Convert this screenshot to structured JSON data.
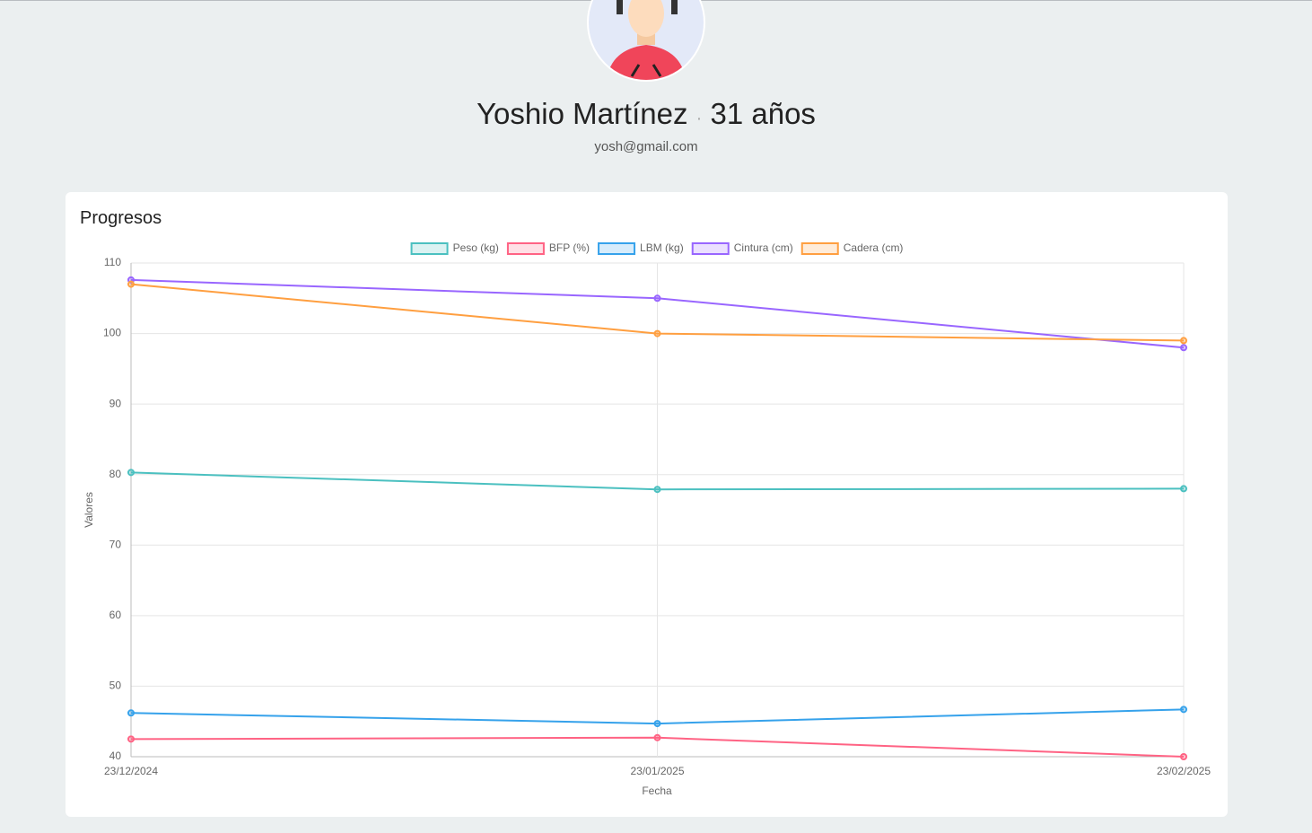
{
  "profile": {
    "name": "Yoshio Martínez",
    "separator": "·",
    "age": "31 años",
    "email": "yosh@gmail.com"
  },
  "card": {
    "title": "Progresos"
  },
  "chart_data": {
    "type": "line",
    "x_label": "Fecha",
    "y_label": "Valores",
    "categories": [
      "23/12/2024",
      "23/01/2025",
      "23/02/2025"
    ],
    "series": [
      {
        "name": "Peso (kg)",
        "color": "#4bc0c0",
        "values": [
          80.3,
          77.9,
          78.0
        ]
      },
      {
        "name": "BFP (%)",
        "color": "#ff6384",
        "values": [
          42.5,
          42.7,
          40.0
        ]
      },
      {
        "name": "LBM (kg)",
        "color": "#36a2eb",
        "values": [
          46.2,
          44.7,
          46.7
        ]
      },
      {
        "name": "Cintura (cm)",
        "color": "#9966ff",
        "values": [
          107.6,
          105.0,
          98.0
        ]
      },
      {
        "name": "Cadera (cm)",
        "color": "#ff9f40",
        "values": [
          107.0,
          100.0,
          99.0
        ]
      }
    ],
    "ylim": [
      40,
      110
    ],
    "yticks": [
      40,
      50,
      60,
      70,
      80,
      90,
      100,
      110
    ],
    "grid": true,
    "legend": "top"
  }
}
